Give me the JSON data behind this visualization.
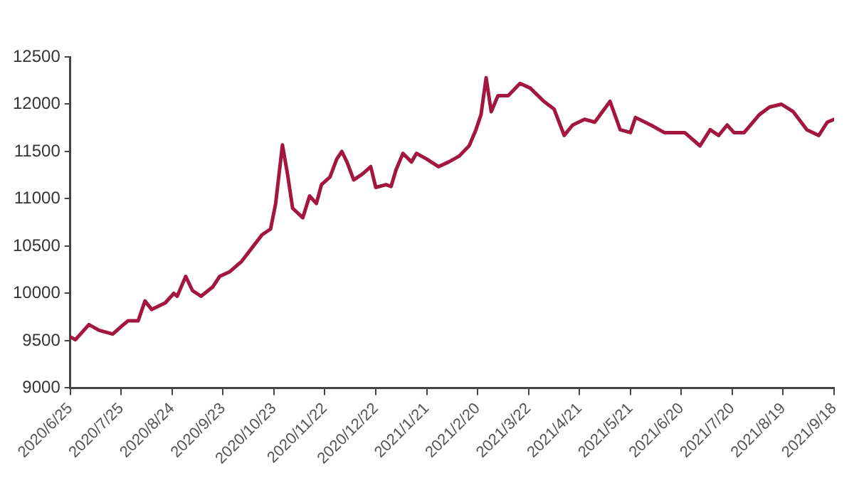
{
  "chart_data": {
    "type": "line",
    "grid": false,
    "legend": false,
    "marker": "none",
    "line_style": "solid",
    "x": [
      "2020-06-25",
      "2020-06-28",
      "2020-07-06",
      "2020-07-12",
      "2020-07-20",
      "2020-07-25",
      "2020-07-29",
      "2020-08-04",
      "2020-08-08",
      "2020-08-12",
      "2020-08-20",
      "2020-08-25",
      "2020-08-27",
      "2020-09-01",
      "2020-09-05",
      "2020-09-10",
      "2020-09-17",
      "2020-09-21",
      "2020-09-27",
      "2020-10-04",
      "2020-10-10",
      "2020-10-16",
      "2020-10-21",
      "2020-10-24",
      "2020-10-28",
      "2020-10-31",
      "2020-11-03",
      "2020-11-09",
      "2020-11-13",
      "2020-11-17",
      "2020-11-20",
      "2020-11-25",
      "2020-11-29",
      "2020-12-02",
      "2020-12-05",
      "2020-12-09",
      "2020-12-14",
      "2020-12-19",
      "2020-12-22",
      "2020-12-28",
      "2020-12-31",
      "2021-01-03",
      "2021-01-07",
      "2021-01-12",
      "2021-01-15",
      "2021-01-21",
      "2021-01-28",
      "2021-02-03",
      "2021-02-09",
      "2021-02-15",
      "2021-02-19",
      "2021-02-22",
      "2021-02-25",
      "2021-02-28",
      "2021-03-04",
      "2021-03-10",
      "2021-03-17",
      "2021-03-23",
      "2021-03-31",
      "2021-04-06",
      "2021-04-12",
      "2021-04-17",
      "2021-04-24",
      "2021-04-30",
      "2021-05-09",
      "2021-05-15",
      "2021-05-21",
      "2021-05-24",
      "2021-06-02",
      "2021-06-10",
      "2021-06-22",
      "2021-07-01",
      "2021-07-07",
      "2021-07-12",
      "2021-07-17",
      "2021-07-21",
      "2021-07-27",
      "2021-08-05",
      "2021-08-11",
      "2021-08-18",
      "2021-08-25",
      "2021-09-02",
      "2021-09-09",
      "2021-09-14",
      "2021-09-18"
    ],
    "series": [
      {
        "color": "#a3173f",
        "values": [
          9540,
          9510,
          9670,
          9610,
          9570,
          9650,
          9710,
          9710,
          9920,
          9830,
          9900,
          10000,
          9970,
          10180,
          10030,
          9970,
          10070,
          10180,
          10230,
          10340,
          10480,
          10620,
          10680,
          10950,
          11570,
          11260,
          10900,
          10800,
          11030,
          10950,
          11150,
          11230,
          11420,
          11500,
          11390,
          11200,
          11260,
          11340,
          11120,
          11150,
          11130,
          11310,
          11480,
          11390,
          11480,
          11420,
          11340,
          11390,
          11450,
          11560,
          11730,
          11890,
          12280,
          11920,
          12090,
          12090,
          12220,
          12170,
          12030,
          11950,
          11670,
          11780,
          11840,
          11810,
          12030,
          11730,
          11700,
          11860,
          11780,
          11700,
          11700,
          11560,
          11730,
          11670,
          11780,
          11700,
          11700,
          11890,
          11970,
          12000,
          11920,
          11730,
          11670,
          11810,
          11840
        ]
      }
    ],
    "xlim": [
      "2020-06-25",
      "2021-09-18"
    ],
    "xticks": [
      {
        "value": "2020-06-25",
        "label": "2020/6/25"
      },
      {
        "value": "2020-07-25",
        "label": "2020/7/25"
      },
      {
        "value": "2020-08-24",
        "label": "2020/8/24"
      },
      {
        "value": "2020-09-23",
        "label": "2020/9/23"
      },
      {
        "value": "2020-10-23",
        "label": "2020/10/23"
      },
      {
        "value": "2020-11-22",
        "label": "2020/11/22"
      },
      {
        "value": "2020-12-22",
        "label": "2020/12/22"
      },
      {
        "value": "2021-01-21",
        "label": "2021/1/21"
      },
      {
        "value": "2021-02-20",
        "label": "2021/2/20"
      },
      {
        "value": "2021-03-22",
        "label": "2021/3/22"
      },
      {
        "value": "2021-04-21",
        "label": "2021/4/21"
      },
      {
        "value": "2021-05-21",
        "label": "2021/5/21"
      },
      {
        "value": "2021-06-20",
        "label": "2021/6/20"
      },
      {
        "value": "2021-07-20",
        "label": "2021/7/20"
      },
      {
        "value": "2021-08-19",
        "label": "2021/8/19"
      },
      {
        "value": "2021-09-18",
        "label": "2021/9/18"
      }
    ],
    "ylim": [
      9000,
      12500
    ],
    "yticks": [
      9000,
      9500,
      10000,
      10500,
      11000,
      11500,
      12000,
      12500
    ]
  }
}
